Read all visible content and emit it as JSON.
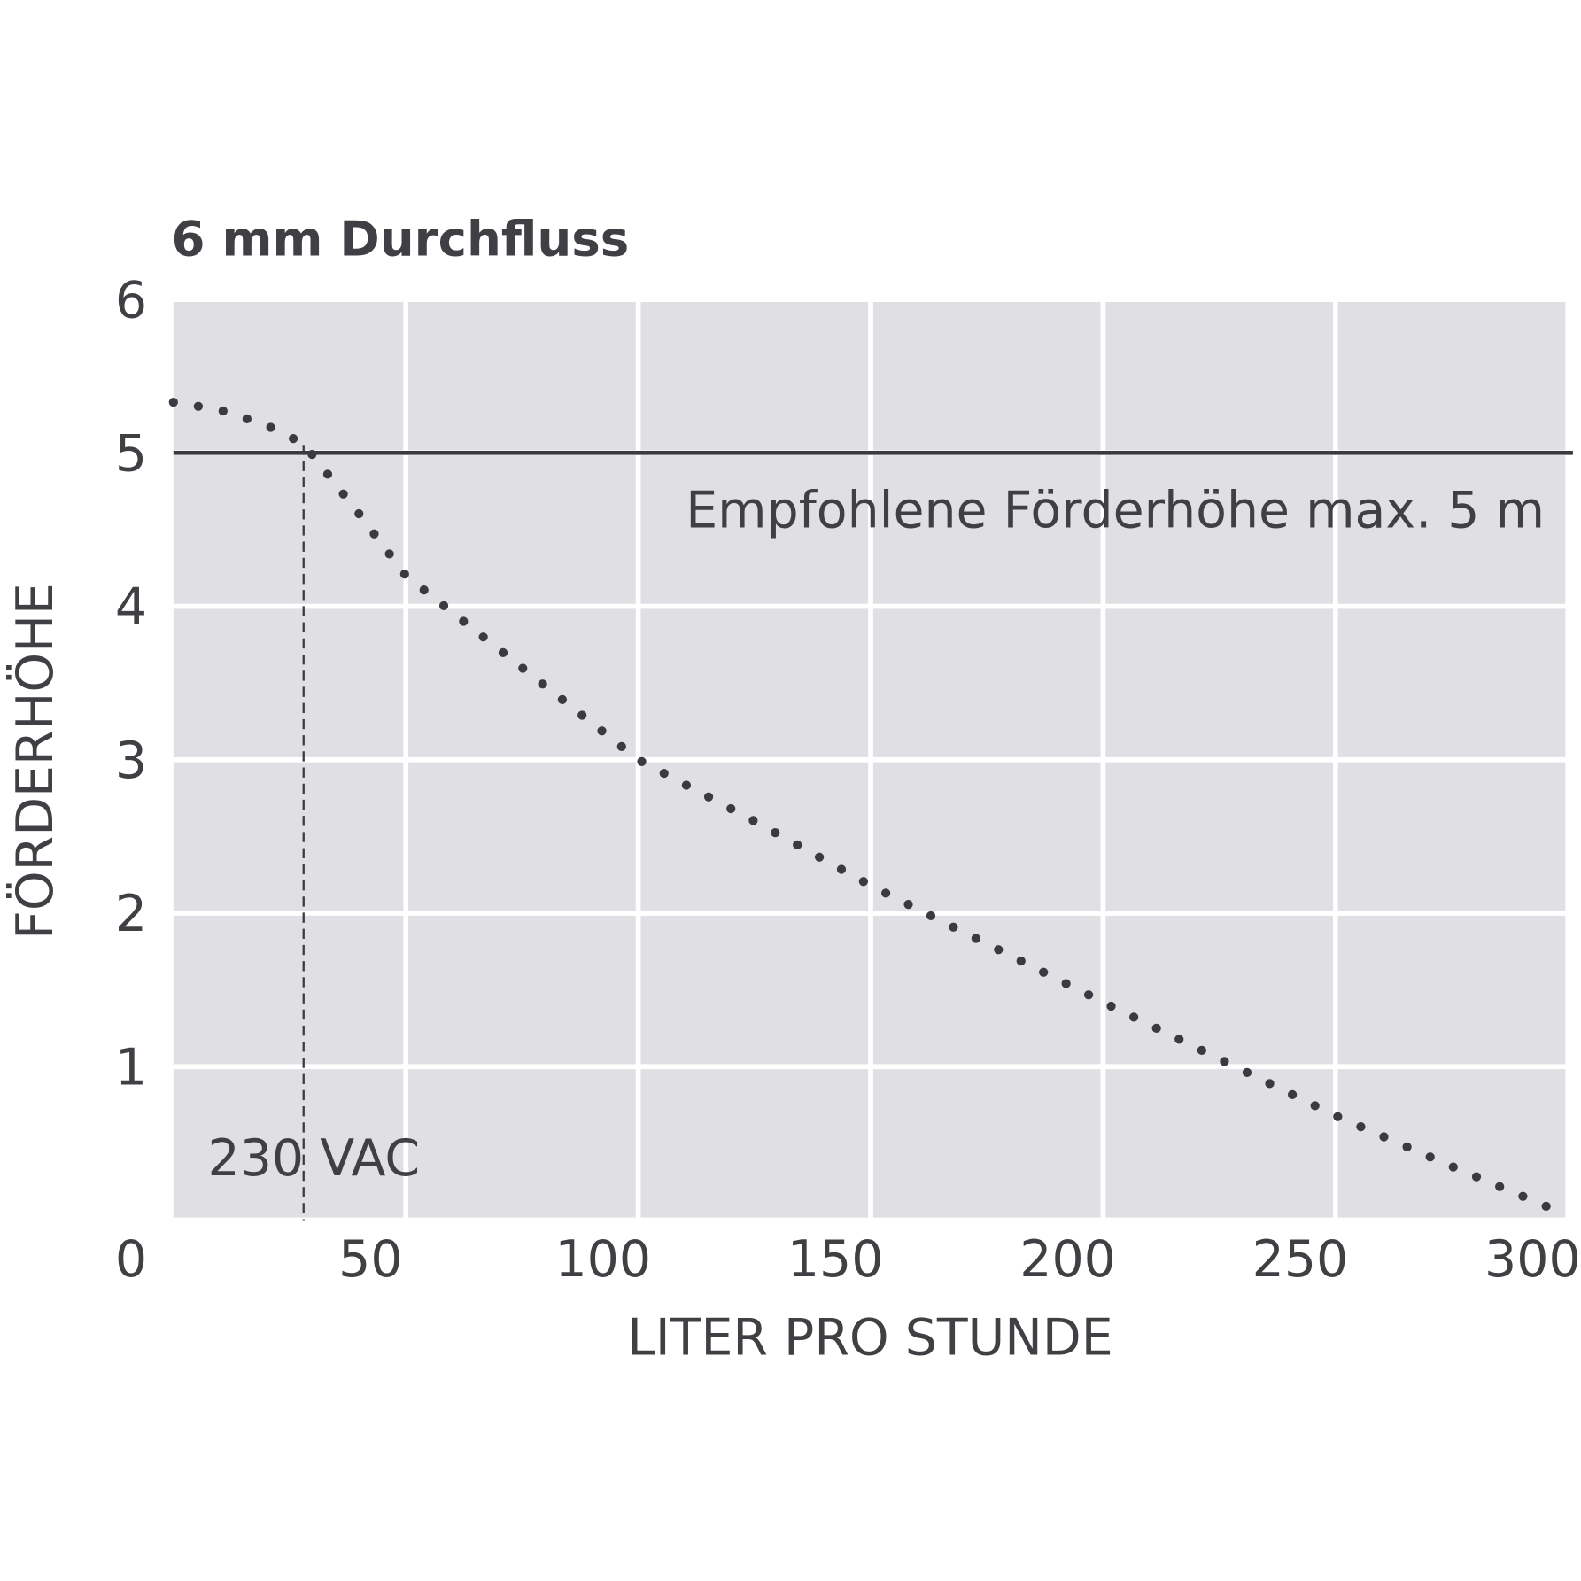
{
  "chart_data": {
    "type": "line",
    "title": "6 mm Durchfluss",
    "x_label": "LITER PRO STUNDE",
    "y_label": "FÖRDERHÖHE",
    "x": [
      0,
      10,
      20,
      28,
      40,
      50,
      75,
      100,
      125,
      150,
      175,
      200,
      225,
      250,
      275,
      300
    ],
    "series": [
      {
        "color": "#3a3a40",
        "values": [
          5.33,
          5.28,
          5.18,
          5.06,
          4.6,
          4.2,
          3.6,
          3.0,
          2.6,
          2.18,
          1.8,
          1.42,
          1.05,
          0.68,
          0.35,
          0.03
        ]
      }
    ],
    "xlim": [
      0,
      300
    ],
    "ylim": [
      0,
      6
    ],
    "xticks": [
      50,
      100,
      150,
      200,
      250,
      300
    ],
    "yticks": [
      0,
      1,
      2,
      3,
      4,
      5,
      6
    ],
    "grid": true,
    "hline": {
      "value": 5,
      "label": "Empfohlene Förderhöhe max. 5 m"
    },
    "vline": {
      "value": 28,
      "label": "230 VAC"
    }
  }
}
